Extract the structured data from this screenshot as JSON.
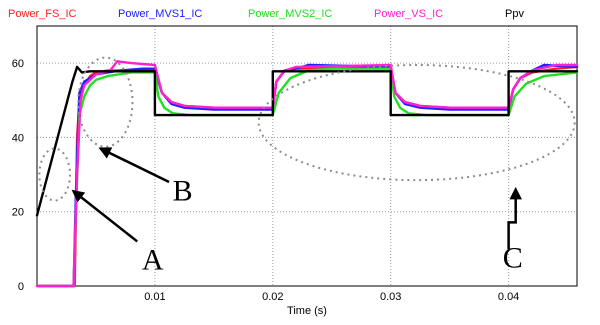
{
  "chart_data": {
    "type": "line",
    "title": "",
    "xlabel": "Time (s)",
    "ylabel": "",
    "xlim": [
      0.0,
      0.0458
    ],
    "ylim": [
      0,
      70
    ],
    "grid": true,
    "legend_placement": "top",
    "x_ticks": [
      {
        "value": 0.01,
        "label": "0.01"
      },
      {
        "value": 0.02,
        "label": "0.02"
      },
      {
        "value": 0.03,
        "label": "0.03"
      },
      {
        "value": 0.04,
        "label": "0.04"
      }
    ],
    "y_ticks": [
      {
        "value": 0,
        "label": "0"
      },
      {
        "value": 20,
        "label": "20"
      },
      {
        "value": 40,
        "label": "40"
      },
      {
        "value": 60,
        "label": "60"
      }
    ],
    "series": [
      {
        "name": "Power_FS_IC",
        "color": "#ff2020",
        "points": [
          [
            0,
            0
          ],
          [
            0.003,
            0
          ],
          [
            0.0032,
            0
          ],
          [
            0.0034,
            40
          ],
          [
            0.0036,
            50
          ],
          [
            0.004,
            54
          ],
          [
            0.0045,
            56.5
          ],
          [
            0.005,
            57.5
          ],
          [
            0.006,
            58
          ],
          [
            0.009,
            58
          ],
          [
            0.01,
            58
          ],
          [
            0.0106,
            52
          ],
          [
            0.0114,
            49.5
          ],
          [
            0.0125,
            48.5
          ],
          [
            0.015,
            48
          ],
          [
            0.02,
            48
          ],
          [
            0.0203,
            55
          ],
          [
            0.021,
            58
          ],
          [
            0.022,
            58.5
          ],
          [
            0.03,
            59
          ],
          [
            0.0304,
            52
          ],
          [
            0.0312,
            49.5
          ],
          [
            0.0325,
            48.5
          ],
          [
            0.035,
            48
          ],
          [
            0.04,
            48
          ],
          [
            0.0404,
            53
          ],
          [
            0.041,
            56
          ],
          [
            0.042,
            57.5
          ],
          [
            0.044,
            58.5
          ],
          [
            0.0458,
            59
          ]
        ]
      },
      {
        "name": "Power_MVS1_IC",
        "color": "#2020ff",
        "points": [
          [
            0,
            0
          ],
          [
            0.0031,
            0
          ],
          [
            0.0033,
            25
          ],
          [
            0.0036,
            52
          ],
          [
            0.004,
            55
          ],
          [
            0.0045,
            56
          ],
          [
            0.005,
            57
          ],
          [
            0.006,
            57.5
          ],
          [
            0.007,
            58
          ],
          [
            0.009,
            58.5
          ],
          [
            0.01,
            58.5
          ],
          [
            0.0106,
            52
          ],
          [
            0.0114,
            49
          ],
          [
            0.0125,
            48
          ],
          [
            0.015,
            47.5
          ],
          [
            0.02,
            47.5
          ],
          [
            0.0203,
            55
          ],
          [
            0.021,
            58
          ],
          [
            0.0225,
            59
          ],
          [
            0.023,
            59.5
          ],
          [
            0.03,
            59
          ],
          [
            0.0304,
            52
          ],
          [
            0.0312,
            49
          ],
          [
            0.0325,
            48
          ],
          [
            0.035,
            47.5
          ],
          [
            0.04,
            47.5
          ],
          [
            0.0404,
            53
          ],
          [
            0.041,
            56
          ],
          [
            0.042,
            58
          ],
          [
            0.043,
            59.5
          ],
          [
            0.0458,
            59
          ]
        ]
      },
      {
        "name": "Power_MVS2_IC",
        "color": "#20e020",
        "points": [
          [
            0,
            0
          ],
          [
            0.0031,
            0
          ],
          [
            0.0033,
            20
          ],
          [
            0.0036,
            46
          ],
          [
            0.004,
            51
          ],
          [
            0.0045,
            54
          ],
          [
            0.005,
            55.5
          ],
          [
            0.006,
            56.5
          ],
          [
            0.008,
            57.5
          ],
          [
            0.01,
            57.5
          ],
          [
            0.0103,
            51
          ],
          [
            0.0108,
            48
          ],
          [
            0.0115,
            46.5
          ],
          [
            0.013,
            46
          ],
          [
            0.02,
            46
          ],
          [
            0.0205,
            52
          ],
          [
            0.0215,
            56
          ],
          [
            0.023,
            58
          ],
          [
            0.025,
            58.5
          ],
          [
            0.03,
            58.5
          ],
          [
            0.0303,
            51
          ],
          [
            0.0308,
            48
          ],
          [
            0.0315,
            46.5
          ],
          [
            0.033,
            46
          ],
          [
            0.04,
            46
          ],
          [
            0.0405,
            51
          ],
          [
            0.0415,
            54.5
          ],
          [
            0.043,
            56.5
          ],
          [
            0.0458,
            57.5
          ]
        ]
      },
      {
        "name": "Power_VS_IC",
        "color": "#ff20d0",
        "points": [
          [
            0,
            0
          ],
          [
            0.0031,
            0
          ],
          [
            0.0034,
            30
          ],
          [
            0.0037,
            50
          ],
          [
            0.004,
            54
          ],
          [
            0.005,
            57
          ],
          [
            0.0062,
            58
          ],
          [
            0.0068,
            60.5
          ],
          [
            0.008,
            60
          ],
          [
            0.01,
            59.5
          ],
          [
            0.0106,
            52
          ],
          [
            0.0114,
            49.5
          ],
          [
            0.0125,
            48.5
          ],
          [
            0.015,
            48
          ],
          [
            0.02,
            48
          ],
          [
            0.0203,
            55
          ],
          [
            0.021,
            58
          ],
          [
            0.022,
            59
          ],
          [
            0.03,
            59.5
          ],
          [
            0.0304,
            52
          ],
          [
            0.0312,
            49.5
          ],
          [
            0.0325,
            48.5
          ],
          [
            0.035,
            48
          ],
          [
            0.04,
            48
          ],
          [
            0.0404,
            53
          ],
          [
            0.041,
            56
          ],
          [
            0.042,
            58
          ],
          [
            0.044,
            59.5
          ],
          [
            0.0458,
            59.5
          ]
        ]
      },
      {
        "name": "Ppv",
        "color": "#000000",
        "points": [
          [
            0,
            19
          ],
          [
            0.003,
            55
          ],
          [
            0.0034,
            59
          ],
          [
            0.0038,
            57.5
          ],
          [
            0.0045,
            57.8
          ],
          [
            0.01,
            57.8
          ],
          [
            0.01,
            46
          ],
          [
            0.02,
            46
          ],
          [
            0.02,
            57.8
          ],
          [
            0.03,
            57.8
          ],
          [
            0.03,
            46
          ],
          [
            0.04,
            46
          ],
          [
            0.04,
            57.8
          ],
          [
            0.0458,
            57.8
          ]
        ]
      }
    ],
    "annotations": [
      {
        "label": "A",
        "ellipse": [
          0.0015,
          30,
          0.0013,
          7
        ],
        "arrow_from": [
          0.0085,
          12
        ],
        "arrow_to": [
          0.0031,
          25.5
        ],
        "text_at": [
          0.0089,
          4.5
        ]
      },
      {
        "label": "B",
        "ellipse": [
          0.0058,
          49.5,
          0.0023,
          12
        ],
        "arrow_from": [
          0.0112,
          28
        ],
        "arrow_to": [
          0.0054,
          37
        ],
        "text_at": [
          0.0115,
          23
        ]
      },
      {
        "label": "C",
        "ellipse": [
          0.0322,
          44,
          0.0134,
          15.5
        ],
        "arrow_from": [
          0.04,
          5
        ],
        "arrow_to": [
          0.0406,
          26
        ],
        "text_at": [
          0.0395,
          5
        ]
      }
    ]
  }
}
